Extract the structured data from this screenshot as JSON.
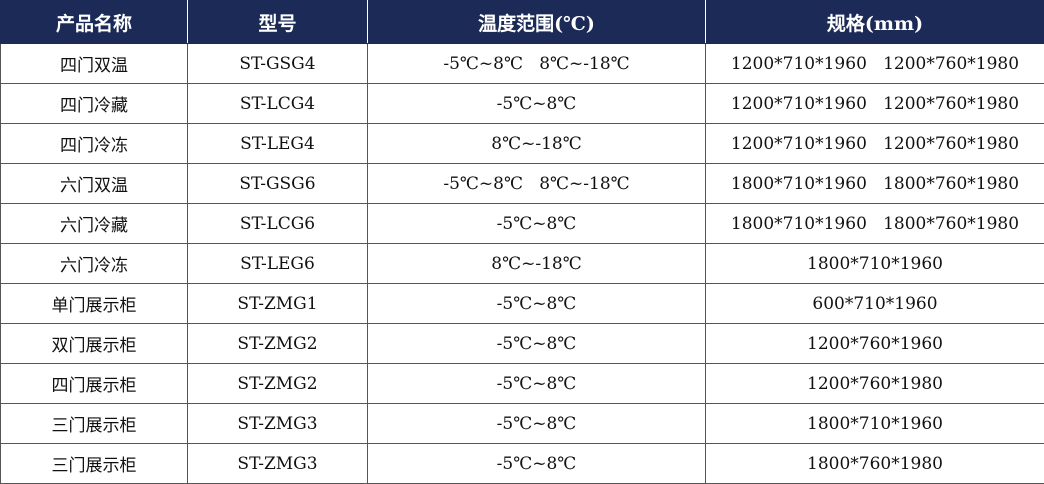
{
  "colors": {
    "header_bg": "#1b2a57",
    "header_text": "#ffffff"
  },
  "headers": [
    "产品名称",
    "型号",
    "温度范围(℃)",
    "规格(mm)"
  ],
  "rows": [
    [
      "四门双温",
      "ST-GSG4",
      "-5℃~8℃   8℃~-18℃",
      "1200*710*1960   1200*760*1980"
    ],
    [
      "四门冷藏",
      "ST-LCG4",
      "-5℃~8℃",
      "1200*710*1960   1200*760*1980"
    ],
    [
      "四门冷冻",
      "ST-LEG4",
      "8℃~-18℃",
      "1200*710*1960   1200*760*1980"
    ],
    [
      "六门双温",
      "ST-GSG6",
      "-5℃~8℃   8℃~-18℃",
      "1800*710*1960   1800*760*1980"
    ],
    [
      "六门冷藏",
      "ST-LCG6",
      "-5℃~8℃",
      "1800*710*1960   1800*760*1980"
    ],
    [
      "六门冷冻",
      "ST-LEG6",
      "8℃~-18℃",
      "1800*710*1960"
    ],
    [
      "单门展示柜",
      "ST-ZMG1",
      "-5℃~8℃",
      "600*710*1960"
    ],
    [
      "双门展示柜",
      "ST-ZMG2",
      "-5℃~8℃",
      "1200*760*1960"
    ],
    [
      "四门展示柜",
      "ST-ZMG2",
      "-5℃~8℃",
      "1200*760*1980"
    ],
    [
      "三门展示柜",
      "ST-ZMG3",
      "-5℃~8℃",
      "1800*710*1960"
    ],
    [
      "三门展示柜",
      "ST-ZMG3",
      "-5℃~8℃",
      "1800*760*1980"
    ]
  ]
}
